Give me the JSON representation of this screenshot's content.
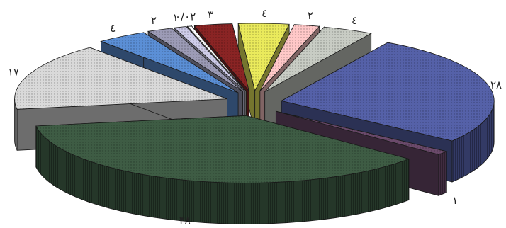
{
  "chart_data": {
    "type": "pie",
    "style": "3d-exploded",
    "legend": "none",
    "slices": [
      {
        "label": "۲۸",
        "value": 28,
        "color": "#5561a8"
      },
      {
        "label": "۱",
        "value": 1,
        "color": "#6b4a6b"
      },
      {
        "label": "۳۸",
        "value": 38,
        "color": "#3e5c44"
      },
      {
        "label": "۱۷",
        "value": 17,
        "color": "#d9d9d9"
      },
      {
        "label": "٤",
        "value": 4,
        "color": "#5b8fd6"
      },
      {
        "label": "۲",
        "value": 2,
        "color": "#9c9bb6"
      },
      {
        "label": "۱",
        "value": 1,
        "color": "#cfcdea"
      },
      {
        "label": "۰/۰۲",
        "value": 0.02,
        "color": "#ffffff"
      },
      {
        "label": "۳",
        "value": 3,
        "color": "#8a2424"
      },
      {
        "label": "٤",
        "value": 4,
        "color": "#eaea5c"
      },
      {
        "label": "۲",
        "value": 2,
        "color": "#ffc8c8"
      },
      {
        "label": "٤",
        "value": 4,
        "color": "#c8ccc4"
      }
    ]
  }
}
